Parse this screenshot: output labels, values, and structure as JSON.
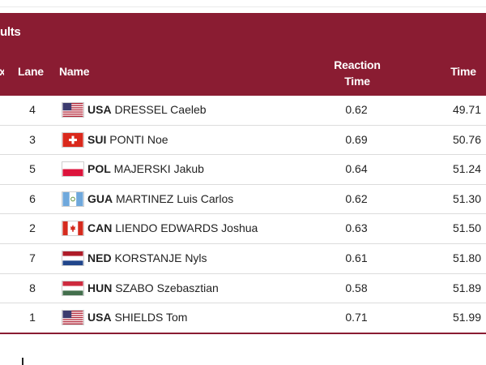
{
  "header": {
    "title": "ults",
    "columns": {
      "rank": "x",
      "lane": "Lane",
      "name": "Name",
      "reaction_line1": "Reaction",
      "reaction_line2": "Time",
      "time": "Time"
    }
  },
  "colors": {
    "header_bg": "#8a1c32",
    "header_text": "#ffffff"
  },
  "results": [
    {
      "lane": "4",
      "noc": "USA",
      "athlete": "DRESSEL Caeleb",
      "reaction": "0.62",
      "time": "49.71",
      "flag": "usa-flag-icon"
    },
    {
      "lane": "3",
      "noc": "SUI",
      "athlete": "PONTI Noe",
      "reaction": "0.69",
      "time": "50.76",
      "flag": "switzerland-flag-icon"
    },
    {
      "lane": "5",
      "noc": "POL",
      "athlete": "MAJERSKI Jakub",
      "reaction": "0.64",
      "time": "51.24",
      "flag": "poland-flag-icon"
    },
    {
      "lane": "6",
      "noc": "GUA",
      "athlete": "MARTINEZ Luis Carlos",
      "reaction": "0.62",
      "time": "51.30",
      "flag": "guatemala-flag-icon"
    },
    {
      "lane": "2",
      "noc": "CAN",
      "athlete": "LIENDO EDWARDS Joshua",
      "reaction": "0.63",
      "time": "51.50",
      "flag": "canada-flag-icon"
    },
    {
      "lane": "7",
      "noc": "NED",
      "athlete": "KORSTANJE Nyls",
      "reaction": "0.61",
      "time": "51.80",
      "flag": "netherlands-flag-icon"
    },
    {
      "lane": "8",
      "noc": "HUN",
      "athlete": "SZABO Szebasztian",
      "reaction": "0.58",
      "time": "51.89",
      "flag": "hungary-flag-icon"
    },
    {
      "lane": "1",
      "noc": "USA",
      "athlete": "SHIELDS Tom",
      "reaction": "0.71",
      "time": "51.99",
      "flag": "usa-flag-icon"
    }
  ]
}
